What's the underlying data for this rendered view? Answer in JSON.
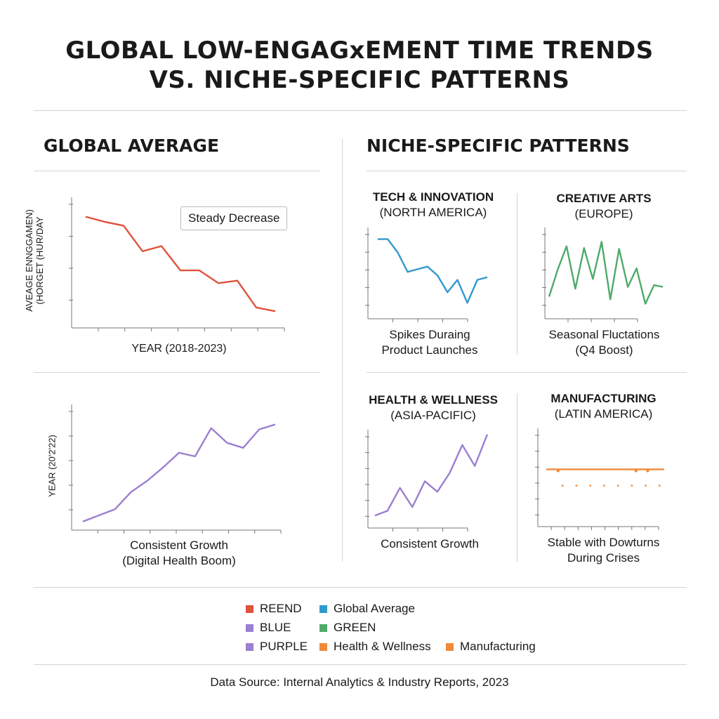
{
  "title_line1": "GLOBAL LOW-ENGAGxEMENT TIME TRENDS",
  "title_line2": "VS. NICHE-SPECIFIC PATTERNS",
  "global_section_title": "GLOBAL AVERAGE",
  "niche_section_title": "NICHE-SPECIFIC PATTERNS",
  "colors": {
    "red": "#e0523c",
    "blue": "#3399cc",
    "green": "#4faa6a",
    "purple": "#9b7fd0",
    "orange": "#f08a3a",
    "axis": "#777777"
  },
  "chart_data": [
    {
      "id": "global_top",
      "type": "line",
      "ylabel_line1": "AVEAGE ENNGGAMEN)",
      "ylabel_line2": "(HORGET (HUR/DAY",
      "xlabel": "YEAR (2018-2023)",
      "annotation": "Steady Decrease",
      "color": "red",
      "ylim": [
        0,
        10
      ],
      "y": [
        8.7,
        8.3,
        8.0,
        6.0,
        6.4,
        4.5,
        4.5,
        3.5,
        3.7,
        1.6,
        1.3
      ]
    },
    {
      "id": "global_bottom",
      "type": "line",
      "ylabel": "YEAR (20'2'22)",
      "caption_line1": "Consistent Growth",
      "caption_line2": "(Digital Health Boom)",
      "color": "purple",
      "ylim": [
        0,
        10
      ],
      "y": [
        0.7,
        1.2,
        1.7,
        3.1,
        4.0,
        5.1,
        6.3,
        6.0,
        8.3,
        7.1,
        6.7,
        8.2,
        8.6
      ]
    },
    {
      "id": "tech",
      "type": "line",
      "title_line1": "TECH & INNOVATION",
      "title_line2": "(NORTH AMERICA)",
      "caption_line1": "Spikes Duraing",
      "caption_line2": "Product Launches",
      "color": "blue",
      "ylim": [
        0,
        10
      ],
      "y": [
        9.0,
        9.0,
        7.5,
        5.3,
        5.6,
        5.9,
        4.9,
        3.0,
        4.4,
        1.8,
        4.4,
        4.7
      ]
    },
    {
      "id": "creative",
      "type": "line",
      "title_line1": "CREATIVE ARTS",
      "title_line2": "(EUROPE)",
      "caption_line1": "Seasonal Fluctations",
      "caption_line2": "(Q4 Boost)",
      "color": "green",
      "ylim": [
        0,
        10
      ],
      "y": [
        2.5,
        5.6,
        8.2,
        3.4,
        8.0,
        4.5,
        8.7,
        2.2,
        7.9,
        3.6,
        5.7,
        1.7,
        3.8,
        3.6
      ]
    },
    {
      "id": "health",
      "type": "line",
      "title_line1": "HEALTH & WELLNESS",
      "title_line2": "(ASIA-PACIFIC)",
      "caption_line1": "Consistent Growth",
      "color": "purple",
      "ylim": [
        0,
        10
      ],
      "y": [
        1.3,
        1.8,
        4.2,
        2.2,
        4.9,
        3.8,
        5.8,
        8.7,
        6.5,
        9.8
      ]
    },
    {
      "id": "manufacturing",
      "type": "line",
      "title_line1": "MANUFACTURING",
      "title_line2": "(LATIN AMERICA)",
      "caption_line1": "Stable with Dowturns",
      "caption_line2": "During Crises",
      "color": "orange",
      "ylim": [
        0,
        10
      ],
      "y": [
        6.0,
        6.0
      ],
      "dip_markers": 8
    }
  ],
  "legend": [
    {
      "label": "REEND",
      "color": "red"
    },
    {
      "label": "Global Average",
      "color": "blue"
    },
    {
      "label": "BLUE",
      "color": "purple"
    },
    {
      "label": "GREEN",
      "color": "green"
    },
    {
      "label": "PURPLE",
      "color": "purple"
    },
    {
      "label": "Health & Wellness",
      "color": "orange"
    },
    {
      "label": "Manufacturing",
      "color": "orange"
    }
  ],
  "footer": "Data Source: Internal Analytics & Industry Reports, 2023"
}
